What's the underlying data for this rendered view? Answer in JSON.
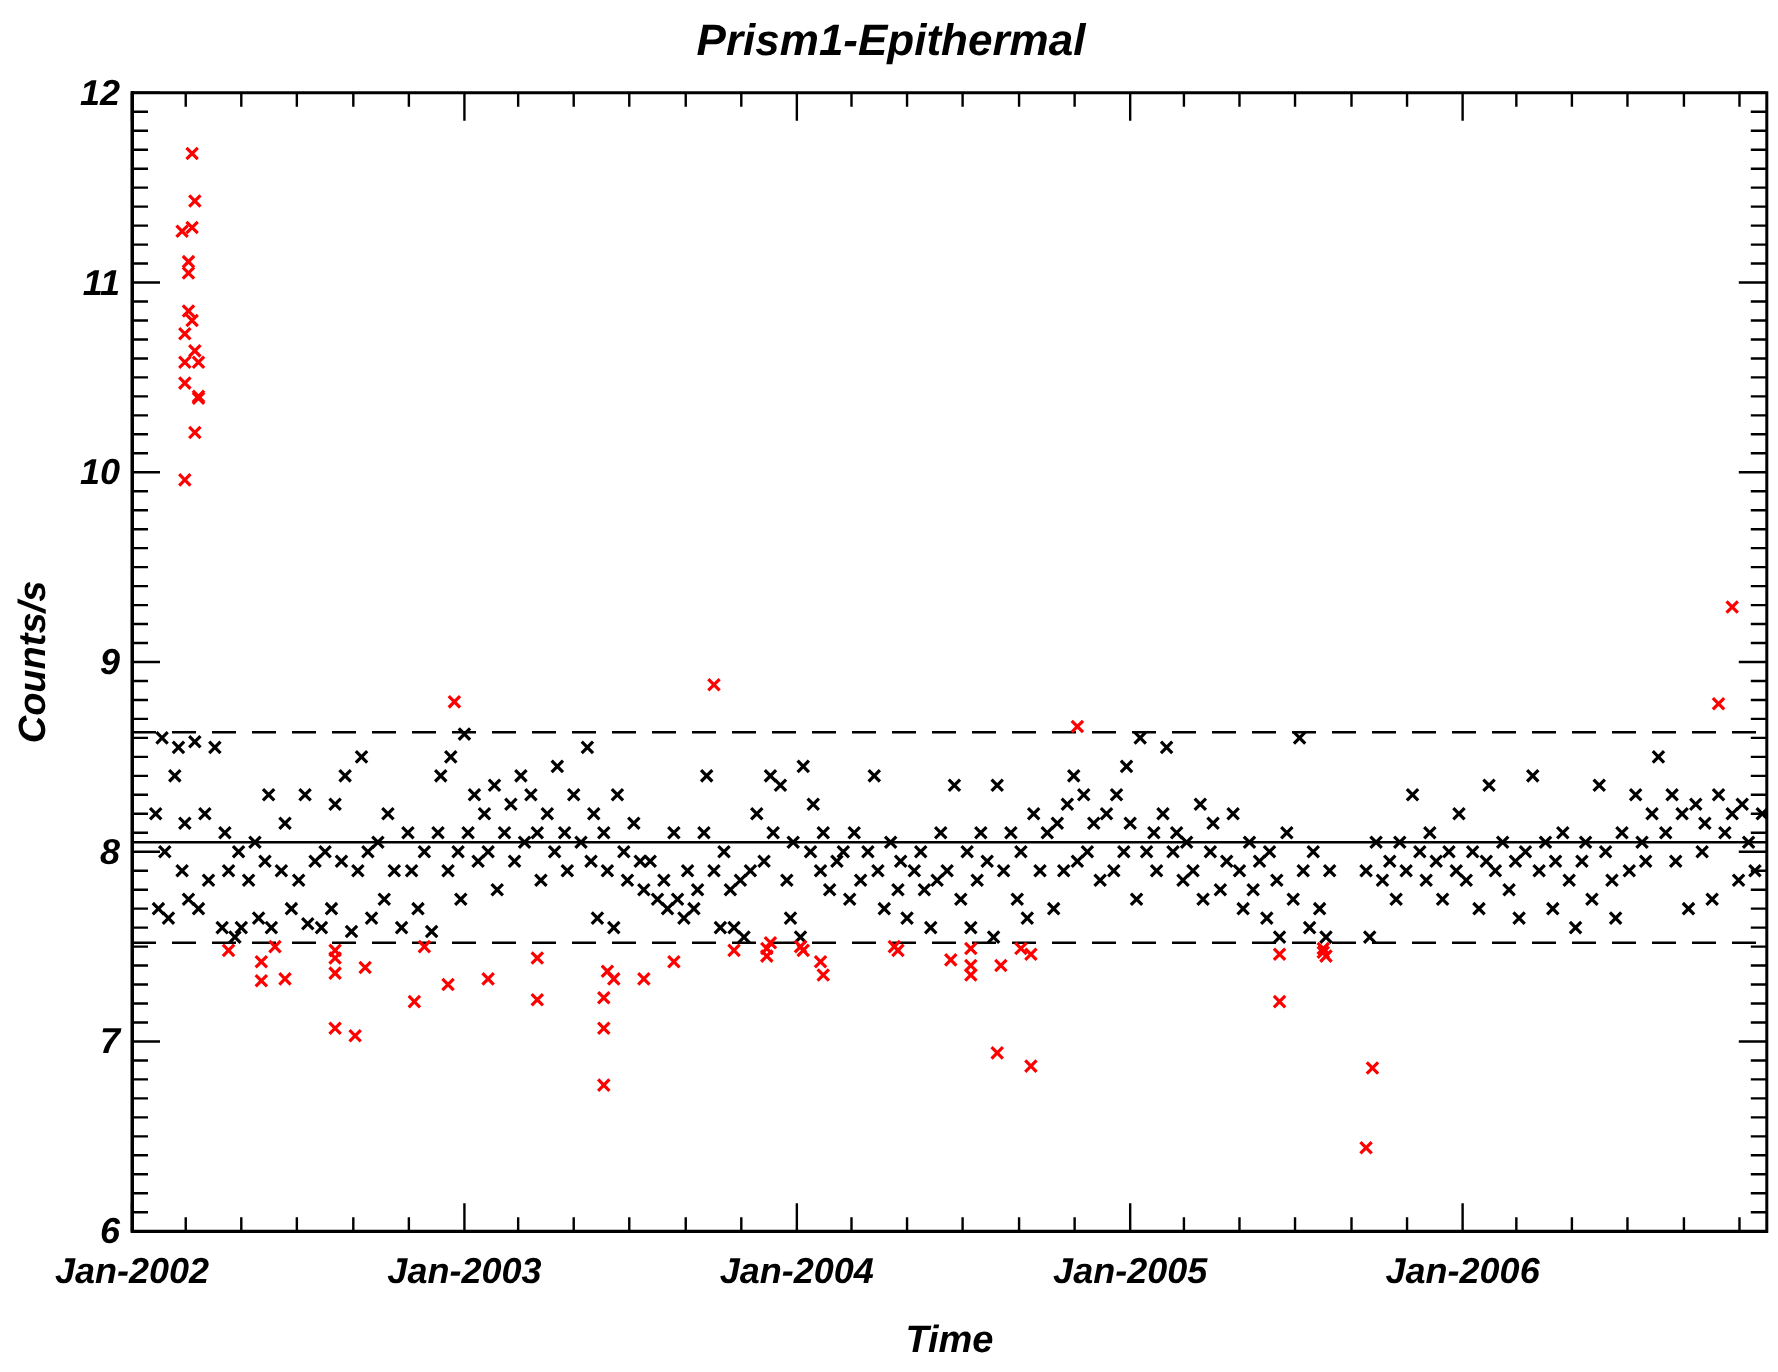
{
  "chart_data": {
    "type": "scatter",
    "title": "Prism1-Epithermal",
    "xlabel": "Time",
    "ylabel": "Counts/s",
    "marker": "cross",
    "grid": false,
    "legend": false,
    "xlim": [
      "2002-01-01",
      "2006-12-01"
    ],
    "ylim": [
      6,
      12
    ],
    "xticks": [
      {
        "value": "2002-01-01",
        "label": "Jan-2002"
      },
      {
        "value": "2002-03-01",
        "label": null
      },
      {
        "value": "2002-05-01",
        "label": null
      },
      {
        "value": "2002-07-01",
        "label": null
      },
      {
        "value": "2002-09-01",
        "label": null
      },
      {
        "value": "2002-11-01",
        "label": null
      },
      {
        "value": "2003-01-01",
        "label": "Jan-2003"
      },
      {
        "value": "2003-03-01",
        "label": null
      },
      {
        "value": "2003-05-01",
        "label": null
      },
      {
        "value": "2003-07-01",
        "label": null
      },
      {
        "value": "2003-09-01",
        "label": null
      },
      {
        "value": "2003-11-01",
        "label": null
      },
      {
        "value": "2004-01-01",
        "label": "Jan-2004"
      },
      {
        "value": "2004-03-01",
        "label": null
      },
      {
        "value": "2004-05-01",
        "label": null
      },
      {
        "value": "2004-07-01",
        "label": null
      },
      {
        "value": "2004-09-01",
        "label": null
      },
      {
        "value": "2004-11-01",
        "label": null
      },
      {
        "value": "2005-01-01",
        "label": "Jan-2005"
      },
      {
        "value": "2005-03-01",
        "label": null
      },
      {
        "value": "2005-05-01",
        "label": null
      },
      {
        "value": "2005-07-01",
        "label": null
      },
      {
        "value": "2005-09-01",
        "label": null
      },
      {
        "value": "2005-11-01",
        "label": null
      },
      {
        "value": "2006-01-01",
        "label": "Jan-2006"
      },
      {
        "value": "2006-03-01",
        "label": null
      },
      {
        "value": "2006-05-01",
        "label": null
      },
      {
        "value": "2006-07-01",
        "label": null
      },
      {
        "value": "2006-09-01",
        "label": null
      },
      {
        "value": "2006-11-01",
        "label": null
      }
    ],
    "yticks": [
      6,
      {
        "value": 6.1,
        "label": null
      },
      {
        "value": 6.2,
        "label": null
      },
      {
        "value": 6.3,
        "label": null
      },
      {
        "value": 6.4,
        "label": null
      },
      {
        "value": 6.5,
        "label": null
      },
      {
        "value": 6.6,
        "label": null
      },
      {
        "value": 6.7,
        "label": null
      },
      {
        "value": 6.8,
        "label": null
      },
      {
        "value": 6.9,
        "label": null
      },
      7,
      {
        "value": 7.1,
        "label": null
      },
      {
        "value": 7.2,
        "label": null
      },
      {
        "value": 7.3,
        "label": null
      },
      {
        "value": 7.4,
        "label": null
      },
      {
        "value": 7.5,
        "label": null
      },
      {
        "value": 7.6,
        "label": null
      },
      {
        "value": 7.7,
        "label": null
      },
      {
        "value": 7.8,
        "label": null
      },
      {
        "value": 7.9,
        "label": null
      },
      8,
      {
        "value": 8.1,
        "label": null
      },
      {
        "value": 8.2,
        "label": null
      },
      {
        "value": 8.3,
        "label": null
      },
      {
        "value": 8.4,
        "label": null
      },
      {
        "value": 8.5,
        "label": null
      },
      {
        "value": 8.6,
        "label": null
      },
      {
        "value": 8.7,
        "label": null
      },
      {
        "value": 8.8,
        "label": null
      },
      {
        "value": 8.9,
        "label": null
      },
      9,
      {
        "value": 9.1,
        "label": null
      },
      {
        "value": 9.2,
        "label": null
      },
      {
        "value": 9.3,
        "label": null
      },
      {
        "value": 9.4,
        "label": null
      },
      {
        "value": 9.5,
        "label": null
      },
      {
        "value": 9.6,
        "label": null
      },
      {
        "value": 9.7,
        "label": null
      },
      {
        "value": 9.8,
        "label": null
      },
      {
        "value": 9.9,
        "label": null
      },
      10,
      {
        "value": 10.1,
        "label": null
      },
      {
        "value": 10.2,
        "label": null
      },
      {
        "value": 10.3,
        "label": null
      },
      {
        "value": 10.4,
        "label": null
      },
      {
        "value": 10.5,
        "label": null
      },
      {
        "value": 10.6,
        "label": null
      },
      {
        "value": 10.7,
        "label": null
      },
      {
        "value": 10.8,
        "label": null
      },
      {
        "value": 10.9,
        "label": null
      },
      11,
      {
        "value": 11.1,
        "label": null
      },
      {
        "value": 11.2,
        "label": null
      },
      {
        "value": 11.3,
        "label": null
      },
      {
        "value": 11.4,
        "label": null
      },
      {
        "value": 11.5,
        "label": null
      },
      {
        "value": 11.6,
        "label": null
      },
      {
        "value": 11.7,
        "label": null
      },
      {
        "value": 11.8,
        "label": null
      },
      {
        "value": 11.9,
        "label": null
      },
      12
    ],
    "ref_lines": [
      {
        "axis": "y",
        "value": 8.05,
        "color": "#000000",
        "line_style": "solid"
      },
      {
        "axis": "y",
        "value": 8.63,
        "color": "#000000",
        "line_style": "dashed"
      },
      {
        "axis": "y",
        "value": 7.52,
        "color": "#000000",
        "line_style": "dashed"
      }
    ],
    "series": [
      {
        "color": "#000000",
        "x": [
          "2002-01-27",
          "2002-01-30",
          "2002-02-03",
          "2002-02-06",
          "2002-02-10",
          "2002-02-17",
          "2002-02-21",
          "2002-02-25",
          "2002-02-28",
          "2002-03-04",
          "2002-03-11",
          "2002-03-15",
          "2002-03-22",
          "2002-03-26",
          "2002-04-02",
          "2002-04-10",
          "2002-04-13",
          "2002-04-17",
          "2002-04-24",
          "2002-04-28",
          "2002-05-01",
          "2002-05-09",
          "2002-05-16",
          "2002-05-20",
          "2002-05-27",
          "2002-05-31",
          "2002-06-03",
          "2002-06-14",
          "2002-06-18",
          "2002-06-25",
          "2002-07-03",
          "2002-07-10",
          "2002-07-13",
          "2002-07-21",
          "2002-07-28",
          "2002-08-01",
          "2002-08-08",
          "2002-08-12",
          "2002-08-19",
          "2002-08-23",
          "2002-08-30",
          "2002-09-06",
          "2002-09-10",
          "2002-09-17",
          "2002-09-21",
          "2002-09-28",
          "2002-10-05",
          "2002-10-09",
          "2002-10-16",
          "2002-10-24",
          "2002-10-31",
          "2002-11-04",
          "2002-11-11",
          "2002-11-18",
          "2002-11-26",
          "2002-12-03",
          "2002-12-06",
          "2002-12-14",
          "2002-12-17",
          "2002-12-25",
          "2002-12-28",
          "2003-01-01",
          "2003-01-05",
          "2003-01-12",
          "2003-01-16",
          "2003-01-23",
          "2003-01-27",
          "2003-02-03",
          "2003-02-06",
          "2003-02-14",
          "2003-02-21",
          "2003-02-25",
          "2003-03-04",
          "2003-03-08",
          "2003-03-15",
          "2003-03-22",
          "2003-03-26",
          "2003-04-02",
          "2003-04-10",
          "2003-04-13",
          "2003-04-21",
          "2003-04-24",
          "2003-05-01",
          "2003-05-09",
          "2003-05-16",
          "2003-05-20",
          "2003-05-23",
          "2003-05-27",
          "2003-06-03",
          "2003-06-07",
          "2003-06-14",
          "2003-06-18",
          "2003-06-25",
          "2003-06-29",
          "2003-07-06",
          "2003-07-13",
          "2003-07-17",
          "2003-07-24",
          "2003-08-01",
          "2003-08-08",
          "2003-08-12",
          "2003-08-19",
          "2003-08-23",
          "2003-08-30",
          "2003-09-03",
          "2003-09-10",
          "2003-09-14",
          "2003-09-21",
          "2003-09-24",
          "2003-10-02",
          "2003-10-09",
          "2003-10-13",
          "2003-10-20",
          "2003-10-24",
          "2003-10-31",
          "2003-11-04",
          "2003-11-11",
          "2003-11-18",
          "2003-11-26",
          "2003-12-03",
          "2003-12-06",
          "2003-12-14",
          "2003-12-21",
          "2003-12-25",
          "2003-12-28",
          "2004-01-05",
          "2004-01-08",
          "2004-01-16",
          "2004-01-19",
          "2004-01-27",
          "2004-01-30",
          "2004-02-06",
          "2004-02-14",
          "2004-02-21",
          "2004-02-28",
          "2004-03-04",
          "2004-03-11",
          "2004-03-19",
          "2004-03-26",
          "2004-03-30",
          "2004-04-06",
          "2004-04-13",
          "2004-04-21",
          "2004-04-24",
          "2004-05-01",
          "2004-05-09",
          "2004-05-16",
          "2004-05-20",
          "2004-05-27",
          "2004-06-03",
          "2004-06-07",
          "2004-06-14",
          "2004-06-22",
          "2004-06-29",
          "2004-07-06",
          "2004-07-10",
          "2004-07-17",
          "2004-07-21",
          "2004-07-28",
          "2004-08-04",
          "2004-08-08",
          "2004-08-15",
          "2004-08-23",
          "2004-08-30",
          "2004-09-03",
          "2004-09-10",
          "2004-09-17",
          "2004-09-24",
          "2004-10-02",
          "2004-10-09",
          "2004-10-13",
          "2004-10-20",
          "2004-10-24",
          "2004-10-31",
          "2004-11-04",
          "2004-11-11",
          "2004-11-15",
          "2004-11-22",
          "2004-11-29",
          "2004-12-06",
          "2004-12-14",
          "2004-12-17",
          "2004-12-25",
          "2004-12-28",
          "2005-01-01",
          "2005-01-08",
          "2005-01-12",
          "2005-01-19",
          "2005-01-27",
          "2005-01-30",
          "2005-02-06",
          "2005-02-10",
          "2005-02-17",
          "2005-02-21",
          "2005-02-28",
          "2005-03-04",
          "2005-03-11",
          "2005-03-19",
          "2005-03-22",
          "2005-03-30",
          "2005-04-02",
          "2005-04-10",
          "2005-04-17",
          "2005-04-24",
          "2005-05-01",
          "2005-05-05",
          "2005-05-12",
          "2005-05-16",
          "2005-05-23",
          "2005-05-31",
          "2005-06-03",
          "2005-06-11",
          "2005-06-14",
          "2005-06-22",
          "2005-06-29",
          "2005-07-06",
          "2005-07-10",
          "2005-07-17",
          "2005-07-21",
          "2005-07-28",
          "2005-08-04",
          "2005-08-08",
          "2005-09-17",
          "2005-09-21",
          "2005-09-28",
          "2005-10-05",
          "2005-10-13",
          "2005-10-20",
          "2005-10-24",
          "2005-10-31",
          "2005-11-07",
          "2005-11-15",
          "2005-11-22",
          "2005-11-26",
          "2005-12-03",
          "2005-12-10",
          "2005-12-17",
          "2005-12-25",
          "2005-12-28",
          "2006-01-05",
          "2006-01-12",
          "2006-01-19",
          "2006-01-27",
          "2006-01-30",
          "2006-02-06",
          "2006-02-14",
          "2006-02-21",
          "2006-02-28",
          "2006-03-04",
          "2006-03-11",
          "2006-03-19",
          "2006-03-26",
          "2006-04-02",
          "2006-04-10",
          "2006-04-13",
          "2006-04-21",
          "2006-04-28",
          "2006-05-05",
          "2006-05-12",
          "2006-05-16",
          "2006-05-23",
          "2006-05-31",
          "2006-06-07",
          "2006-06-14",
          "2006-06-18",
          "2006-06-25",
          "2006-07-03",
          "2006-07-10",
          "2006-07-17",
          "2006-07-21",
          "2006-07-28",
          "2006-08-04",
          "2006-08-12",
          "2006-08-19",
          "2006-08-23",
          "2006-08-30",
          "2006-09-06",
          "2006-09-14",
          "2006-09-21",
          "2006-09-24",
          "2006-10-02",
          "2006-10-09",
          "2006-10-16",
          "2006-10-24",
          "2006-10-31",
          "2006-11-04",
          "2006-11-11",
          "2006-11-18",
          "2006-11-26"
        ],
        "values": [
          8.2,
          7.7,
          8.6,
          8.0,
          7.65,
          8.4,
          8.55,
          7.9,
          8.15,
          7.75,
          8.58,
          7.7,
          8.2,
          7.85,
          8.55,
          7.6,
          8.1,
          7.9,
          7.55,
          8.0,
          7.6,
          7.85,
          8.05,
          7.65,
          7.95,
          8.3,
          7.6,
          7.9,
          8.15,
          7.7,
          7.85,
          8.3,
          7.62,
          7.95,
          7.6,
          8.0,
          7.7,
          8.25,
          7.95,
          8.4,
          7.58,
          7.9,
          8.5,
          8.0,
          7.65,
          8.05,
          7.75,
          8.2,
          7.9,
          7.6,
          8.1,
          7.9,
          7.7,
          8.0,
          7.58,
          8.1,
          8.4,
          7.9,
          8.5,
          8.0,
          7.75,
          8.62,
          8.1,
          8.3,
          7.95,
          8.2,
          8.0,
          8.35,
          7.8,
          8.1,
          8.25,
          7.95,
          8.4,
          8.05,
          8.3,
          8.1,
          7.85,
          8.2,
          8.0,
          8.45,
          8.1,
          7.9,
          8.3,
          8.05,
          8.55,
          7.95,
          8.2,
          7.65,
          8.1,
          7.9,
          7.6,
          8.3,
          8.0,
          7.85,
          8.15,
          7.95,
          7.8,
          7.95,
          7.75,
          7.85,
          7.7,
          8.1,
          7.75,
          7.65,
          7.9,
          7.7,
          7.8,
          8.1,
          8.4,
          7.9,
          7.6,
          8.0,
          7.8,
          7.6,
          7.85,
          7.55,
          7.9,
          8.2,
          7.95,
          8.4,
          8.1,
          8.35,
          7.85,
          7.65,
          8.05,
          7.55,
          8.45,
          8.0,
          8.25,
          7.9,
          8.1,
          7.8,
          7.95,
          8.0,
          7.75,
          8.1,
          7.85,
          8.0,
          8.4,
          7.9,
          7.7,
          8.05,
          7.8,
          7.95,
          7.65,
          7.9,
          8.0,
          7.8,
          7.6,
          7.85,
          8.1,
          7.9,
          8.35,
          7.75,
          8.0,
          7.6,
          7.85,
          8.1,
          7.95,
          7.55,
          8.35,
          7.9,
          8.1,
          7.75,
          8.0,
          7.65,
          8.2,
          7.9,
          8.1,
          7.7,
          8.15,
          7.9,
          8.25,
          8.4,
          7.95,
          8.3,
          8.0,
          8.15,
          7.85,
          8.2,
          7.9,
          8.3,
          8.0,
          8.45,
          8.15,
          7.75,
          8.6,
          8.0,
          8.1,
          7.9,
          8.2,
          8.55,
          8.0,
          8.1,
          7.85,
          8.05,
          7.9,
          8.25,
          7.75,
          8.0,
          8.15,
          7.8,
          7.95,
          8.2,
          7.9,
          7.7,
          8.05,
          7.8,
          7.95,
          7.65,
          8.0,
          7.85,
          7.55,
          8.1,
          7.75,
          8.6,
          7.9,
          7.6,
          8.0,
          7.7,
          7.55,
          7.9,
          7.9,
          7.55,
          8.05,
          7.85,
          7.95,
          7.75,
          8.05,
          7.9,
          8.3,
          8.0,
          7.85,
          8.1,
          7.95,
          7.75,
          8.0,
          7.9,
          8.2,
          7.85,
          8.0,
          7.7,
          7.95,
          8.35,
          7.9,
          8.05,
          7.8,
          7.95,
          7.65,
          8.0,
          8.4,
          7.9,
          8.05,
          7.7,
          7.95,
          8.1,
          7.85,
          7.6,
          7.95,
          8.05,
          7.75,
          8.35,
          8.0,
          7.85,
          7.65,
          8.1,
          7.9,
          8.3,
          8.05,
          7.95,
          8.2,
          8.5,
          8.1,
          8.3,
          7.95,
          8.2,
          7.7,
          8.25,
          8.0,
          8.15,
          7.75,
          8.3,
          8.1,
          8.2,
          7.85,
          8.25,
          8.05,
          7.9,
          8.2
        ]
      },
      {
        "color": "#ff0000",
        "x": [
          "2002-03-08",
          "2002-03-11",
          "2002-02-25",
          "2002-03-08",
          "2002-03-04",
          "2002-03-04",
          "2002-03-04",
          "2002-03-08",
          "2002-02-28",
          "2002-03-11",
          "2002-02-28",
          "2002-03-15",
          "2002-02-28",
          "2002-03-15",
          "2002-03-15",
          "2002-03-11",
          "2002-02-28",
          "2002-04-17",
          "2002-05-23",
          "2002-05-23",
          "2002-06-07",
          "2002-06-18",
          "2002-08-12",
          "2002-08-12",
          "2002-08-12",
          "2002-08-12",
          "2002-09-03",
          "2002-09-14",
          "2002-11-07",
          "2002-11-18",
          "2002-12-14",
          "2002-12-21",
          "2003-01-27",
          "2003-03-22",
          "2003-03-22",
          "2003-06-07",
          "2003-06-14",
          "2003-06-03",
          "2003-06-03",
          "2003-06-03",
          "2003-07-17",
          "2003-08-19",
          "2003-10-02",
          "2003-10-24",
          "2003-11-29",
          "2003-12-03",
          "2003-11-29",
          "2004-01-05",
          "2004-01-08",
          "2004-01-27",
          "2004-01-30",
          "2004-04-17",
          "2004-04-21",
          "2004-06-18",
          "2004-07-10",
          "2004-07-10",
          "2004-07-10",
          "2004-08-12",
          "2004-08-08",
          "2004-09-03",
          "2004-09-14",
          "2004-09-14",
          "2004-11-04",
          "2005-06-14",
          "2005-06-14",
          "2005-08-01",
          "2005-08-04",
          "2005-08-01",
          "2005-09-24",
          "2005-09-17",
          "2006-10-09",
          "2006-10-24"
        ],
        "values": [
          11.68,
          11.43,
          11.27,
          11.29,
          11.11,
          11.05,
          10.85,
          10.8,
          10.73,
          10.64,
          10.58,
          10.58,
          10.47,
          10.4,
          10.39,
          10.21,
          9.96,
          7.48,
          7.42,
          7.32,
          7.5,
          7.33,
          7.48,
          7.44,
          7.36,
          7.07,
          7.03,
          7.39,
          7.21,
          7.5,
          7.3,
          8.79,
          7.33,
          7.44,
          7.22,
          7.37,
          7.33,
          7.23,
          7.07,
          6.77,
          7.33,
          7.42,
          8.88,
          7.48,
          7.49,
          7.52,
          7.45,
          7.5,
          7.48,
          7.42,
          7.35,
          7.5,
          7.48,
          7.43,
          7.49,
          7.4,
          7.35,
          7.4,
          6.94,
          7.49,
          7.46,
          6.87,
          8.66,
          7.46,
          7.21,
          7.49,
          7.45,
          7.47,
          6.86,
          6.44,
          8.78,
          9.29
        ]
      }
    ]
  }
}
